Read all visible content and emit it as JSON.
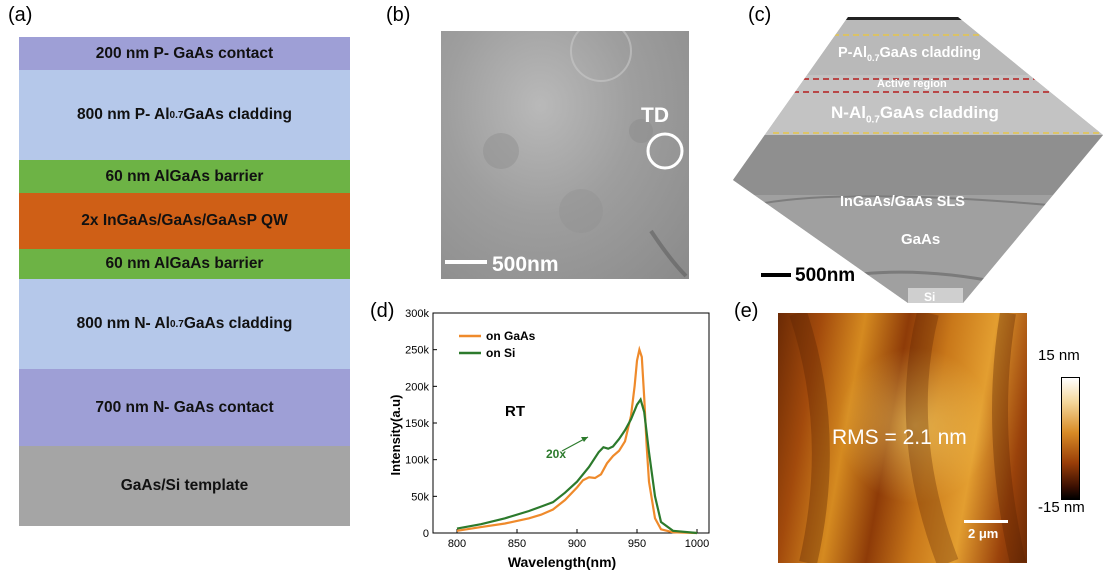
{
  "panel_labels": [
    "(a)",
    "(b)",
    "(c)",
    "(d)",
    "(e)"
  ],
  "panel_a": {
    "layers": [
      {
        "pre": "200 nm P- GaAs contact",
        "sub": "",
        "post": "",
        "color": "#9e9fd6"
      },
      {
        "pre": "800 nm P- Al",
        "sub": "0.7",
        "post": "GaAs  cladding",
        "color": "#b5c8ea"
      },
      {
        "pre": "60 nm AlGaAs  barrier",
        "sub": "",
        "post": "",
        "color": "#6db345"
      },
      {
        "pre": "2x InGaAs/GaAs/GaAsP  QW",
        "sub": "",
        "post": "",
        "color": "#cf5f16"
      },
      {
        "pre": "60 nm AlGaAs  barrier",
        "sub": "",
        "post": "",
        "color": "#6db345"
      },
      {
        "pre": "800 nm N- Al",
        "sub": "0.7",
        "post": "GaAs  cladding",
        "color": "#b5c8ea"
      },
      {
        "pre": "700 nm N- GaAs contact",
        "sub": "",
        "post": "",
        "color": "#9e9fd6"
      },
      {
        "pre": "GaAs/Si template",
        "sub": "",
        "post": "",
        "color": "#a5a5a5"
      }
    ]
  },
  "panel_b": {
    "scale_label": "500nm",
    "td_label": "TD"
  },
  "panel_c": {
    "labels": {
      "p_cladding_pre": "P-Al",
      "p_cladding_sub": "0.7",
      "p_cladding_post": "GaAs cladding",
      "active": "Active region",
      "n_cladding_pre": "N-Al",
      "n_cladding_sub": "0.7",
      "n_cladding_post": "GaAs cladding",
      "sls": "InGaAs/GaAs SLS",
      "gaas": "GaAs",
      "si": "Si"
    },
    "scale_label": "500nm"
  },
  "panel_e": {
    "rms_label": "RMS = 2.1 nm",
    "scale_label": "2 μm",
    "cbar_max": "15 nm",
    "cbar_min": "-15 nm"
  },
  "chart_data": {
    "type": "line",
    "xlabel": "Wavelength(nm)",
    "ylabel": "Intensity(a.u)",
    "xlim": [
      780,
      1010
    ],
    "ylim": [
      0,
      300000
    ],
    "xticks": [
      800,
      850,
      900,
      950,
      1000
    ],
    "yticks": [
      0,
      50000,
      100000,
      150000,
      200000,
      250000,
      300000
    ],
    "ytick_labels": [
      "0",
      "50k",
      "100k",
      "150k",
      "200k",
      "250k",
      "300k"
    ],
    "annotations": [
      "RT",
      "20x"
    ],
    "legend_position": "top-left",
    "series": [
      {
        "name": "on GaAs",
        "color": "#ef8a2b",
        "x": [
          800,
          820,
          840,
          860,
          870,
          880,
          890,
          900,
          905,
          910,
          915,
          920,
          925,
          930,
          935,
          940,
          945,
          948,
          950,
          952,
          954,
          956,
          958,
          960,
          965,
          970,
          980,
          1000
        ],
        "y": [
          3000,
          8000,
          13000,
          20000,
          25000,
          32000,
          45000,
          62000,
          72000,
          76000,
          75000,
          80000,
          95000,
          105000,
          112000,
          125000,
          160000,
          200000,
          235000,
          250000,
          240000,
          185000,
          120000,
          70000,
          20000,
          5000,
          1000,
          0
        ]
      },
      {
        "name": "on Si",
        "color": "#2c7a2c",
        "x": [
          800,
          820,
          840,
          860,
          870,
          880,
          890,
          900,
          910,
          918,
          922,
          926,
          930,
          935,
          940,
          945,
          950,
          953,
          956,
          960,
          965,
          970,
          980,
          1000
        ],
        "y": [
          6000,
          12000,
          20000,
          30000,
          36000,
          42000,
          55000,
          70000,
          90000,
          110000,
          117000,
          115000,
          118000,
          128000,
          140000,
          155000,
          175000,
          182000,
          165000,
          110000,
          50000,
          15000,
          3000,
          0
        ]
      }
    ]
  }
}
